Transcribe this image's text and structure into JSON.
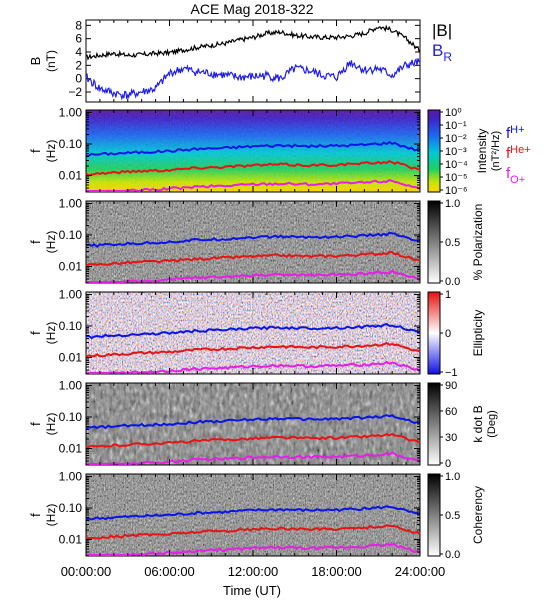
{
  "title": "ACE Mag 2018-322",
  "chart_data": [
    {
      "type": "line",
      "panel": "magnetic-field",
      "ylabel": "B",
      "yunit": "(nT)",
      "ylim": [
        -3.5,
        8.8
      ],
      "yticks": [
        -2,
        0,
        2,
        4,
        6,
        8
      ],
      "x": [
        "00:00",
        "01:00",
        "02:00",
        "03:00",
        "04:00",
        "05:00",
        "06:00",
        "07:00",
        "08:00",
        "09:00",
        "10:00",
        "11:00",
        "12:00",
        "13:00",
        "14:00",
        "15:00",
        "16:00",
        "17:00",
        "18:00",
        "19:00",
        "20:00",
        "21:00",
        "22:00",
        "23:00",
        "24:00"
      ],
      "series": [
        {
          "name": "|B|",
          "color": "#000000",
          "values": [
            3.2,
            3.5,
            3.8,
            3.5,
            3.6,
            3.8,
            3.9,
            4.3,
            4.7,
            5.0,
            5.3,
            5.8,
            6.2,
            6.8,
            7.0,
            6.5,
            6.3,
            6.2,
            6.2,
            6.4,
            6.8,
            7.8,
            7.3,
            6.0,
            4.2
          ]
        },
        {
          "name": "B",
          "subscript": "R",
          "color": "#1e1ee6",
          "values": [
            0.2,
            -1.5,
            -2.2,
            -2.5,
            -2.0,
            -1.5,
            0.8,
            1.5,
            1.0,
            0.8,
            0.5,
            0.2,
            0.3,
            0.5,
            0.0,
            1.5,
            1.2,
            0.5,
            0.2,
            2.5,
            1.3,
            1.5,
            0.5,
            2.0,
            2.5
          ]
        }
      ]
    },
    {
      "type": "heatmap",
      "panel": "intensity",
      "ylabel": "f",
      "yunit": "(Hz)",
      "ylim": [
        0.003,
        1.2
      ],
      "yscale": "log",
      "yticks": [
        "1.00",
        "0.10",
        "0.01"
      ],
      "colorbar": {
        "label": "Intensity",
        "unit": "(nT²/Hz)",
        "scale": "rainbow",
        "ticks": [
          "10⁰",
          "10⁻¹",
          "10⁻²",
          "10⁻³",
          "10⁻⁴",
          "10⁻⁵",
          "10⁻⁶"
        ]
      }
    },
    {
      "type": "heatmap",
      "panel": "polarization",
      "ylabel": "f",
      "yunit": "(Hz)",
      "ylim": [
        0.003,
        1.2
      ],
      "yscale": "log",
      "yticks": [
        "1.00",
        "0.10",
        "0.01"
      ],
      "colorbar": {
        "label": "% Polarization",
        "scale": "gray-inverse",
        "ticks": [
          "1.0",
          "0.5",
          "0.0"
        ]
      }
    },
    {
      "type": "heatmap",
      "panel": "ellipticity",
      "ylabel": "f",
      "yunit": "(Hz)",
      "ylim": [
        0.003,
        1.2
      ],
      "yscale": "log",
      "yticks": [
        "1.00",
        "0.10",
        "0.01"
      ],
      "colorbar": {
        "label": "Ellipticity",
        "scale": "blue-white-red",
        "ticks": [
          "1",
          "0",
          "−1"
        ]
      }
    },
    {
      "type": "heatmap",
      "panel": "wave-normal-angle",
      "ylabel": "f",
      "yunit": "(Hz)",
      "ylim": [
        0.003,
        1.2
      ],
      "yscale": "log",
      "yticks": [
        "1.00",
        "0.10",
        "0.01"
      ],
      "colorbar": {
        "label": "k dot B",
        "unit": "(Deg)",
        "scale": "gray-inverse",
        "ticks": [
          "90",
          "60",
          "30",
          "0"
        ]
      }
    },
    {
      "type": "heatmap",
      "panel": "coherency",
      "ylabel": "f",
      "yunit": "(Hz)",
      "ylim": [
        0.003,
        1.2
      ],
      "yscale": "log",
      "yticks": [
        "1.00",
        "0.10",
        "0.01"
      ],
      "colorbar": {
        "label": "Coherency",
        "scale": "gray-inverse",
        "ticks": [
          "1.0",
          "0.5",
          "0.0"
        ]
      }
    }
  ],
  "gyrofrequencies": {
    "x": [
      "00:00",
      "02:00",
      "04:00",
      "06:00",
      "08:00",
      "10:00",
      "12:00",
      "14:00",
      "16:00",
      "18:00",
      "20:00",
      "22:00",
      "24:00"
    ],
    "lines": [
      {
        "name": "f",
        "subscript": "H+",
        "color": "#0a14e6",
        "values": [
          0.045,
          0.05,
          0.055,
          0.06,
          0.07,
          0.075,
          0.085,
          0.09,
          0.085,
          0.088,
          0.095,
          0.11,
          0.06
        ]
      },
      {
        "name": "f",
        "subscript": "He+",
        "color": "#e61414",
        "values": [
          0.011,
          0.0125,
          0.014,
          0.015,
          0.0175,
          0.019,
          0.021,
          0.0225,
          0.021,
          0.022,
          0.024,
          0.0275,
          0.015
        ]
      },
      {
        "name": "f",
        "subscript": "O+",
        "color": "#e61ee6",
        "values": [
          0.0028,
          0.0031,
          0.0034,
          0.0038,
          0.0044,
          0.0047,
          0.0053,
          0.0056,
          0.0053,
          0.0055,
          0.006,
          0.0069,
          0.0038
        ]
      }
    ]
  },
  "xaxis": {
    "label": "Time (UT)",
    "ticks": [
      "00:00:00",
      "06:00:00",
      "12:00:00",
      "18:00:00",
      "24:00:00"
    ]
  },
  "colors": {
    "axes": "#000000",
    "babs": "#000000",
    "br": "#1e1ee6"
  }
}
